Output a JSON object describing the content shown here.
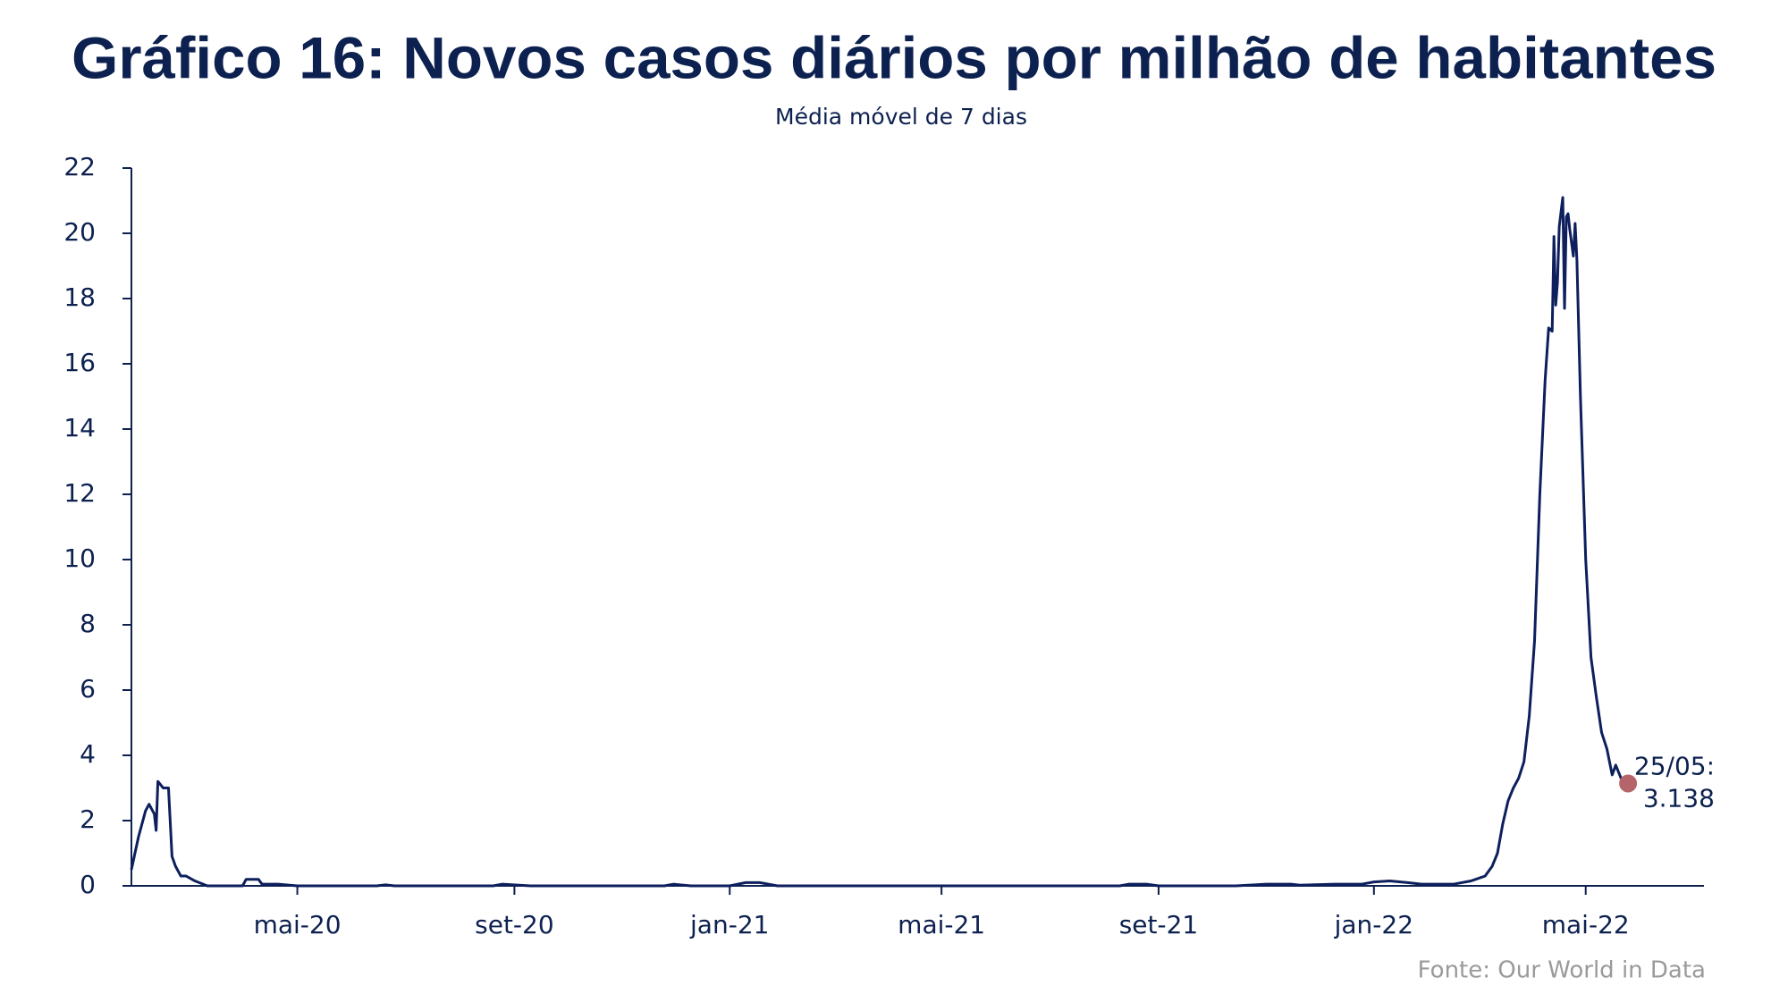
{
  "chart_data": {
    "type": "line",
    "title": "Gráfico 16: Novos casos diários por milhão de habitantes",
    "subtitle": "Média móvel de 7 dias",
    "source": "Fonte: Our World in Data",
    "annotation": [
      "25/05:",
      "3.138"
    ],
    "x": [
      "2020-01-28",
      "2020-02-01",
      "2020-02-05",
      "2020-02-07",
      "2020-02-10",
      "2020-02-11",
      "2020-02-12",
      "2020-02-15",
      "2020-02-18",
      "2020-02-20",
      "2020-02-22",
      "2020-02-25",
      "2020-02-28",
      "2020-03-04",
      "2020-03-11",
      "2020-03-31",
      "2020-04-02",
      "2020-04-09",
      "2020-04-11",
      "2020-04-20",
      "2020-05-01",
      "2020-06-15",
      "2020-06-20",
      "2020-06-25",
      "2020-08-20",
      "2020-08-25",
      "2020-09-10",
      "2020-11-25",
      "2020-11-30",
      "2020-12-10",
      "2021-01-01",
      "2021-01-10",
      "2021-01-18",
      "2021-01-28",
      "2021-08-10",
      "2021-08-15",
      "2021-08-25",
      "2021-09-01",
      "2021-10-15",
      "2021-11-01",
      "2021-11-15",
      "2021-11-20",
      "2021-12-10",
      "2021-12-25",
      "2022-01-01",
      "2022-01-10",
      "2022-01-20",
      "2022-01-28",
      "2022-02-15",
      "2022-02-25",
      "2022-03-05",
      "2022-03-09",
      "2022-03-12",
      "2022-03-15",
      "2022-03-18",
      "2022-03-21",
      "2022-03-24",
      "2022-03-27",
      "2022-03-30",
      "2022-04-02",
      "2022-04-05",
      "2022-04-08",
      "2022-04-10",
      "2022-04-12",
      "2022-04-13",
      "2022-04-14",
      "2022-04-15",
      "2022-04-16",
      "2022-04-18",
      "2022-04-19",
      "2022-04-20",
      "2022-04-21",
      "2022-04-22",
      "2022-04-24",
      "2022-04-25",
      "2022-04-26",
      "2022-04-28",
      "2022-05-01",
      "2022-05-04",
      "2022-05-07",
      "2022-05-10",
      "2022-05-13",
      "2022-05-16",
      "2022-05-18",
      "2022-05-21",
      "2022-05-25"
    ],
    "series": [
      {
        "name": "Novos casos diários por milhão",
        "color": "#0d1f5c",
        "values": [
          0.5,
          1.5,
          2.3,
          2.5,
          2.2,
          1.7,
          3.2,
          3.0,
          3.0,
          0.9,
          0.6,
          0.3,
          0.3,
          0.15,
          0,
          0,
          0.2,
          0.2,
          0.05,
          0.05,
          0,
          0,
          0.03,
          0,
          0,
          0.05,
          0,
          0,
          0.05,
          0,
          0,
          0.1,
          0.1,
          0,
          0,
          0.05,
          0.05,
          0,
          0,
          0.05,
          0.05,
          0.02,
          0.05,
          0.05,
          0.12,
          0.15,
          0.1,
          0.05,
          0.05,
          0.15,
          0.3,
          0.6,
          1.0,
          1.9,
          2.6,
          3.0,
          3.3,
          3.8,
          5.2,
          7.5,
          12,
          15.5,
          17.1,
          17.0,
          19.9,
          17.8,
          18.5,
          20.2,
          21.1,
          17.7,
          20.5,
          20.6,
          20.1,
          19.3,
          20.3,
          19.2,
          15,
          10,
          7,
          5.8,
          4.7,
          4.2,
          3.4,
          3.7,
          3.3,
          3.138
        ]
      }
    ],
    "marker_color": "#b5656a",
    "xlim": [
      "2020-01-28",
      "2022-07-07"
    ],
    "xticks": [
      {
        "value": "2020-05-01",
        "label": "mai-20"
      },
      {
        "value": "2020-09-01",
        "label": "set-20"
      },
      {
        "value": "2021-01-01",
        "label": "jan-21"
      },
      {
        "value": "2021-05-01",
        "label": "mai-21"
      },
      {
        "value": "2021-09-01",
        "label": "set-21"
      },
      {
        "value": "2022-01-01",
        "label": "jan-22"
      },
      {
        "value": "2022-05-01",
        "label": "mai-22"
      }
    ],
    "ylim": [
      0,
      22
    ],
    "yticks": [
      0,
      2,
      4,
      6,
      8,
      10,
      12,
      14,
      16,
      18,
      20,
      22
    ],
    "grid": false
  }
}
